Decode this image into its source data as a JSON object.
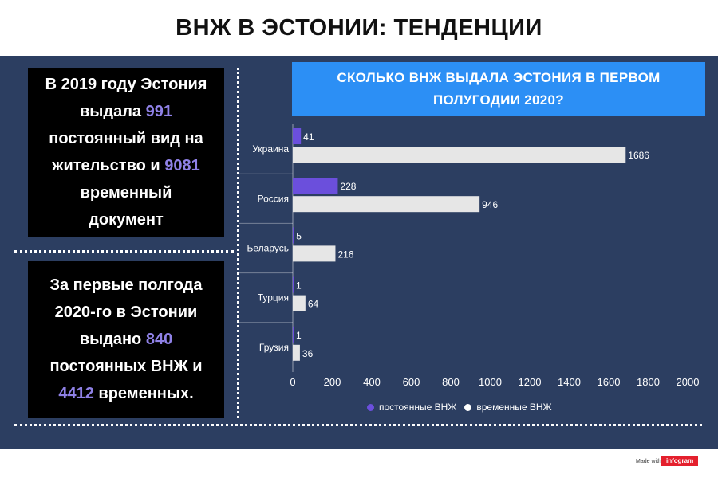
{
  "page": {
    "title": "ВНЖ В ЭСТОНИИ: ТЕНДЕНЦИИ"
  },
  "cards": {
    "card1": {
      "line1": "В 2019 году Эстония",
      "line2_pre": "выдала ",
      "line2_num": "991",
      "line3": "постоянный вид на",
      "line4_pre": "жительство и ",
      "line4_num": "9081",
      "line5": "временный",
      "line6": "документ"
    },
    "card2": {
      "line1": "За первые полгода",
      "line2": "2020-го в Эстонии",
      "line3_pre": "выдано ",
      "line3_num": "840",
      "line4": "постоянных ВНЖ и",
      "line5_num": "4412",
      "line5_post": " временных."
    }
  },
  "chart_data": {
    "type": "bar",
    "orientation": "horizontal",
    "title": "СКОЛЬКО ВНЖ ВЫДАЛА ЭСТОНИЯ В ПЕРВОМ ПОЛУГОДИИ 2020?",
    "categories": [
      "Украина",
      "Россия",
      "Беларусь",
      "Турция",
      "Грузия"
    ],
    "series": [
      {
        "name": "постоянные ВНЖ",
        "values": [
          41,
          228,
          5,
          1,
          1
        ],
        "color": "#6b4fdc"
      },
      {
        "name": "временные ВНЖ",
        "values": [
          1686,
          946,
          216,
          64,
          36
        ],
        "color": "#e6e6e6"
      }
    ],
    "xlim": [
      0,
      2000
    ],
    "xticks": [
      "0",
      "200",
      "400",
      "600",
      "800",
      "1000",
      "1200",
      "1400",
      "1600",
      "1800",
      "2000"
    ],
    "xlabel": "",
    "ylabel": "",
    "grid": false,
    "legend": "bottom",
    "data_labels": true
  },
  "footer": {
    "made_with": "Made with",
    "logo": "infogram"
  }
}
